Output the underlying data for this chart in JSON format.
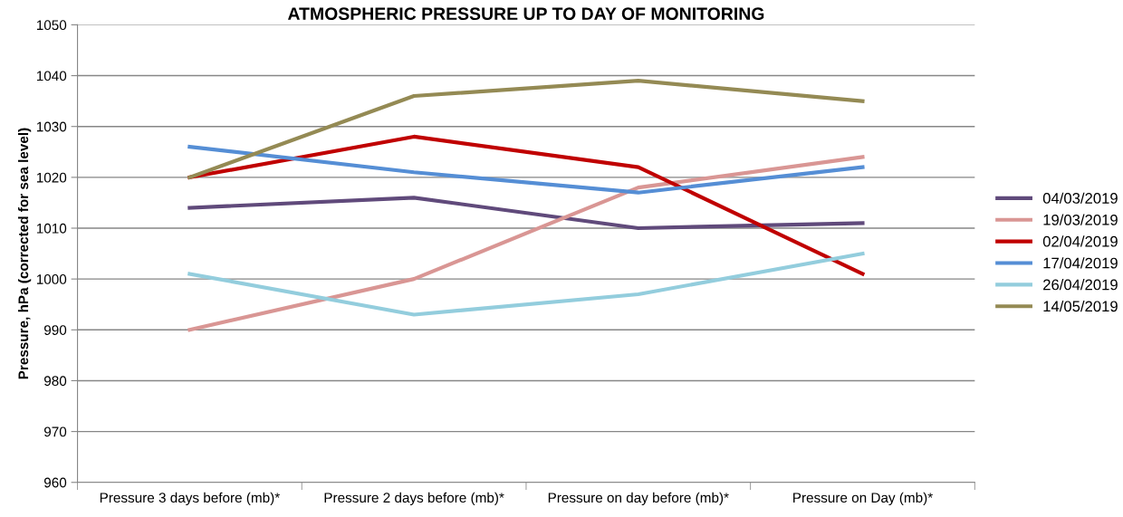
{
  "chart_data": {
    "type": "line",
    "title": "ATMOSPHERIC PRESSURE UP TO DAY OF MONITORING",
    "ylabel": "Pressure, hPa (corrected for sea level)",
    "categories": [
      "Pressure 3 days before (mb)*",
      "Pressure 2 days before (mb)*",
      "Pressure on day before (mb)*",
      "Pressure on Day (mb)*"
    ],
    "series": [
      {
        "name": "04/03/2019",
        "color": "#604a7b",
        "values": [
          1014,
          1016,
          1010,
          1011
        ]
      },
      {
        "name": "19/03/2019",
        "color": "#d99694",
        "values": [
          990,
          1000,
          1018,
          1024
        ]
      },
      {
        "name": "02/04/2019",
        "color": "#c00000",
        "values": [
          1020,
          1028,
          1022,
          1001
        ]
      },
      {
        "name": "17/04/2019",
        "color": "#558ed5",
        "values": [
          1026,
          1021,
          1017,
          1022
        ]
      },
      {
        "name": "26/04/2019",
        "color": "#93cddd",
        "values": [
          1001,
          993,
          997,
          1005
        ]
      },
      {
        "name": "14/05/2019",
        "color": "#948a54",
        "values": [
          1020,
          1036,
          1039,
          1035
        ]
      }
    ],
    "ylim": [
      960,
      1050
    ],
    "yticks": [
      960,
      970,
      980,
      990,
      1000,
      1010,
      1020,
      1030,
      1040,
      1050
    ],
    "grid": "y",
    "legend": "right",
    "marker": "none",
    "line_style": "solid"
  }
}
